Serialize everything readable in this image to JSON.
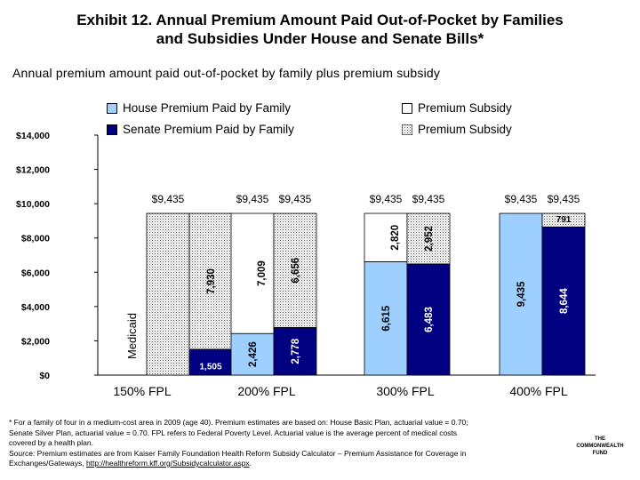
{
  "title_line1": "Exhibit 12. Annual Premium Amount Paid Out-of-Pocket by Families",
  "title_line2": "and Subsidies Under House and Senate Bills*",
  "subtitle": "Annual premium amount paid out-of-pocket by family plus premium subsidy",
  "legend": {
    "house": "House Premium Paid by Family",
    "senate": "Senate Premium Paid by Family",
    "subsidy1": "Premium Subsidy",
    "subsidy2": "Premium Subsidy"
  },
  "colors": {
    "house": "#9dcfff",
    "senate": "#000080",
    "border": "#000000"
  },
  "chart_data": {
    "type": "bar",
    "stacked": true,
    "title": "",
    "xlabel": "",
    "ylabel": "",
    "ylim": [
      0,
      14000
    ],
    "yticks": [
      "$0",
      "$2,000",
      "$4,000",
      "$6,000",
      "$8,000",
      "$10,000",
      "$12,000",
      "$14,000"
    ],
    "yticks_values": [
      0,
      2000,
      4000,
      6000,
      8000,
      10000,
      12000,
      14000
    ],
    "groups": [
      {
        "category": "150% FPL",
        "bars": [
          {
            "chamber": "house",
            "family": null,
            "subsidy": null,
            "total_label": "$9,435",
            "note": "Medicaid"
          },
          {
            "chamber": "senate",
            "family": 1505,
            "subsidy": 7930,
            "family_label": "1,505",
            "subsidy_label": "7,930",
            "total_label": ""
          }
        ]
      },
      {
        "category": "200% FPL",
        "bars": [
          {
            "chamber": "house",
            "family": 2426,
            "subsidy": 7009,
            "family_label": "2,426",
            "subsidy_label": "7,009",
            "total_label": "$9,435"
          },
          {
            "chamber": "senate",
            "family": 2778,
            "subsidy": 6656,
            "family_label": "2,778",
            "subsidy_label": "6,656",
            "total_label": "$9,435"
          }
        ]
      },
      {
        "category": "300% FPL",
        "bars": [
          {
            "chamber": "house",
            "family": 6615,
            "subsidy": 2820,
            "family_label": "6,615",
            "subsidy_label": "2,820",
            "total_label": "$9,435"
          },
          {
            "chamber": "senate",
            "family": 6483,
            "subsidy": 2952,
            "family_label": "6,483",
            "subsidy_label": "2,952",
            "total_label": "$9,435"
          }
        ]
      },
      {
        "category": "400% FPL",
        "bars": [
          {
            "chamber": "house",
            "family": 9435,
            "subsidy": 0,
            "family_label": "9,435",
            "subsidy_label": "",
            "total_label": "$9,435"
          },
          {
            "chamber": "senate",
            "family": 8644,
            "subsidy": 791,
            "family_label": "8,644",
            "subsidy_label": "791",
            "total_label": "$9,435"
          }
        ]
      }
    ],
    "legend_position": "top"
  },
  "footnote": {
    "line1": "* For a family of four in a medium-cost area in 2009 (age 40). Premium estimates are based on: House Basic Plan, actuarial value = 0.70;",
    "line2": "Senate Silver Plan, actuarial value = 0.70. FPL refers to Federal Poverty Level. Actuarial value is the average percent of medical costs",
    "line3": "covered by a health plan.",
    "line4": "Source: Premium estimates are from Kaiser Family Foundation Health Reform Subsidy Calculator – Premium Assistance for Coverage in",
    "line5": "Exchanges/Gateways, ",
    "link": "http://healthreform.kff.org/Subsidycalculator.aspx",
    "line5_end": "."
  },
  "logo": {
    "line1": "THE",
    "line2": "COMMONWEALTH",
    "line3": "FUND"
  }
}
